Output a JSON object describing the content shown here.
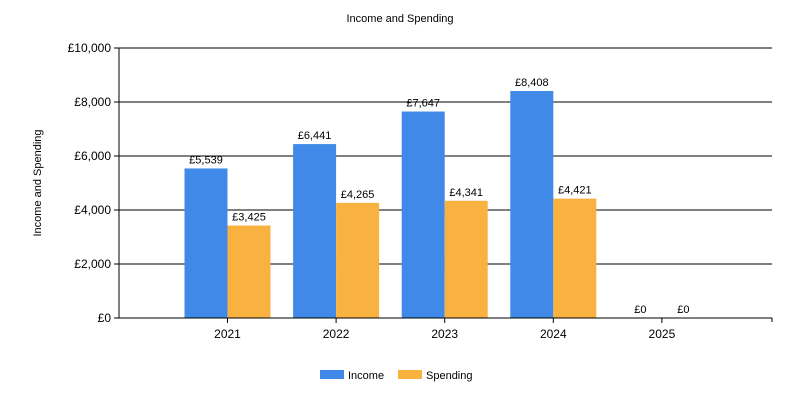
{
  "chart_data": {
    "type": "bar",
    "title": "Income and Spending",
    "ylabel": "Income and Spending",
    "xlabel": "",
    "categories": [
      "2021",
      "2022",
      "2023",
      "2024",
      "2025"
    ],
    "series": [
      {
        "name": "Income",
        "color": "#4189E8",
        "values": [
          5539,
          6441,
          7647,
          8408,
          0
        ],
        "labels": [
          "£5,539",
          "£6,441",
          "£7,647",
          "£8,408",
          "£0"
        ]
      },
      {
        "name": "Spending",
        "color": "#F9B13F",
        "values": [
          3425,
          4265,
          4341,
          4421,
          0
        ],
        "labels": [
          "£3,425",
          "£4,265",
          "£4,341",
          "£4,421",
          "£0"
        ]
      }
    ],
    "ylim": [
      0,
      10000
    ],
    "yticks": [
      0,
      2000,
      4000,
      6000,
      8000,
      10000
    ],
    "ytick_labels": [
      "£0",
      "£2,000",
      "£4,000",
      "£6,000",
      "£8,000",
      "£10,000"
    ],
    "grid": "horizontal",
    "legend_position": "bottom-center"
  }
}
